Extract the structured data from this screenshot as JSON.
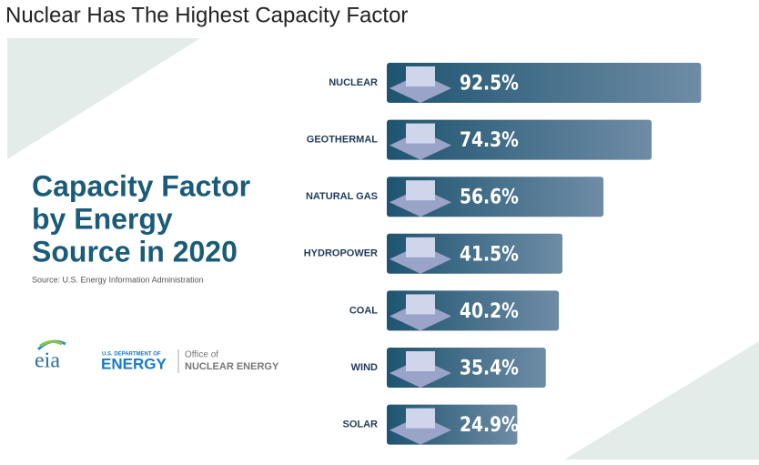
{
  "page_title": "Nuclear Has The Highest Capacity Factor",
  "chart_data": {
    "type": "bar",
    "orientation": "horizontal",
    "title": [
      "Capacity Factor",
      "by Energy",
      "Source in 2020"
    ],
    "source": "Source: U.S. Energy Information Administration",
    "categories": [
      "NUCLEAR",
      "GEOTHERMAL",
      "NATURAL GAS",
      "HYDROPOWER",
      "COAL",
      "WIND",
      "SOLAR"
    ],
    "values": [
      92.5,
      74.3,
      56.6,
      41.5,
      40.2,
      35.4,
      24.9
    ],
    "value_labels": [
      "92.5%",
      "74.3%",
      "56.6%",
      "41.5%",
      "40.2%",
      "35.4%",
      "24.9%"
    ],
    "color": "#1e5470"
  },
  "logos": {
    "eia": "eia",
    "doe_top": "U.S. DEPARTMENT OF",
    "doe": "ENERGY",
    "office_top": "Office of",
    "office": "NUCLEAR ENERGY"
  }
}
